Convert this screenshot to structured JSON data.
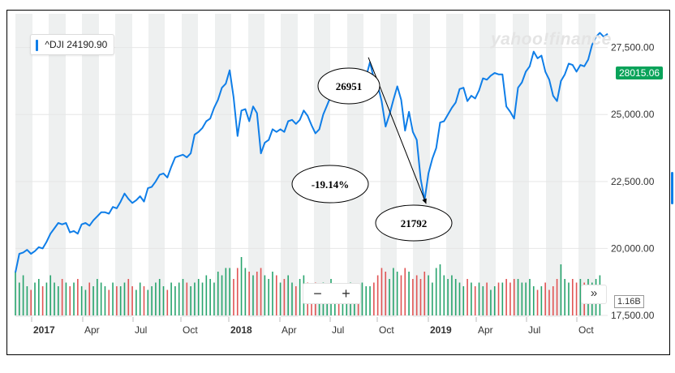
{
  "ticker_label": "^DJI 24190.90",
  "watermark": "yahoo!finance",
  "controls": {
    "zoom_out": "−",
    "zoom_in": "+",
    "more": "»"
  },
  "annotations": {
    "peak": "26951",
    "trough": "21792",
    "change": "-19.14%"
  },
  "chart_data": {
    "type": "line",
    "title": "",
    "xlabel": "",
    "ylabel": "",
    "ylim": [
      17500,
      28700
    ],
    "yticks": [
      17500,
      20000,
      22500,
      25000,
      27500
    ],
    "ytick_labels": [
      "17,500.00",
      "20,000.00",
      "22,500.00",
      "25,000.00",
      "27,500.00"
    ],
    "x_tick_labels": [
      "2017",
      "Apr",
      "Jul",
      "Oct",
      "2018",
      "Apr",
      "Jul",
      "Oct",
      "2019",
      "Apr",
      "Jul",
      "Oct"
    ],
    "last_price": "28015.06",
    "volume_label": "1.16B",
    "series": [
      {
        "values": [
          19100,
          19800,
          19850,
          19950,
          19800,
          19900,
          20050,
          20000,
          20250,
          20550,
          20750,
          20950,
          20900,
          20950,
          20600,
          20650,
          20550,
          20900,
          20950,
          20850,
          21050,
          21200,
          21350,
          21350,
          21300,
          21550,
          21500,
          21750,
          22050,
          21850,
          21700,
          21800,
          21950,
          21750,
          22250,
          22300,
          22500,
          22750,
          22800,
          22650,
          23050,
          23400,
          23450,
          23500,
          23400,
          23550,
          24250,
          24350,
          24500,
          24750,
          24850,
          25250,
          25550,
          26000,
          26150,
          26650,
          25650,
          24200,
          25150,
          25200,
          24750,
          25300,
          25050,
          23550,
          23950,
          24050,
          24450,
          24350,
          24450,
          24350,
          24750,
          24800,
          24650,
          24800,
          25150,
          24950,
          24600,
          24300,
          24450,
          25000,
          25350,
          25700,
          25850,
          25650,
          25650,
          25950,
          25950,
          26050,
          26000,
          26350,
          26400,
          26951,
          26350,
          26100,
          25500,
          24550,
          25000,
          25550,
          26050,
          25550,
          24400,
          25100,
          24350,
          24050,
          22600,
          21792,
          22800,
          23350,
          23750,
          24700,
          24750,
          25000,
          25250,
          25450,
          25950,
          26000,
          25500,
          25700,
          25600,
          25900,
          26350,
          26300,
          26450,
          26550,
          26500,
          26500,
          25300,
          25100,
          24850,
          26000,
          26200,
          26600,
          26800,
          27350,
          27100,
          27200,
          26600,
          26300,
          25700,
          25500,
          26250,
          26500,
          26900,
          26850,
          26600,
          26850,
          26800,
          27050,
          27600,
          27900,
          28050,
          27900,
          28015.06
        ]
      }
    ],
    "volume": [
      1.2,
      0.9,
      1.1,
      0.8,
      0.7,
      0.9,
      1.0,
      0.8,
      0.9,
      1.1,
      0.9,
      0.8,
      1.0,
      0.9,
      0.8,
      0.9,
      1.0,
      0.8,
      0.7,
      0.9,
      0.8,
      1.0,
      0.9,
      0.8,
      0.7,
      0.9,
      0.8,
      0.8,
      0.9,
      1.0,
      0.8,
      0.7,
      0.9,
      0.8,
      0.7,
      0.8,
      0.9,
      1.0,
      0.8,
      0.7,
      0.9,
      0.8,
      0.9,
      1.0,
      0.9,
      0.8,
      0.9,
      1.0,
      0.9,
      1.1,
      1.0,
      0.9,
      1.2,
      1.1,
      1.3,
      1.3,
      1.0,
      1.3,
      1.6,
      1.3,
      1.2,
      1.1,
      1.2,
      1.3,
      1.1,
      1.0,
      1.2,
      1.1,
      0.9,
      1.0,
      1.1,
      0.9,
      0.8,
      1.0,
      1.1,
      0.9,
      0.8,
      0.9,
      0.8,
      0.9,
      0.8,
      1.0,
      0.8,
      0.7,
      0.8,
      0.8,
      0.9,
      0.8,
      0.7,
      0.9,
      0.8,
      0.8,
      0.9,
      1.1,
      1.3,
      1.2,
      1.0,
      1.3,
      1.2,
      1.1,
      1.3,
      1.2,
      1.0,
      1.1,
      1.0,
      1.2,
      1.1,
      0.9,
      1.3,
      1.4,
      1.1,
      1.0,
      1.1,
      1.0,
      0.9,
      0.8,
      1.0,
      0.9,
      0.8,
      0.9,
      0.8,
      0.9,
      0.7,
      0.8,
      0.9,
      0.9,
      1.0,
      0.9,
      1.0,
      1.0,
      0.9,
      0.9,
      1.0,
      0.8,
      0.7,
      0.8,
      0.9,
      0.7,
      0.8,
      1.0,
      1.4,
      1.0,
      0.9,
      1.0,
      0.9,
      1.0,
      0.9,
      1.0,
      0.9,
      1.0,
      1.1
    ],
    "colors": {
      "line": "#0f7ee8",
      "shade": "#eef0f0",
      "vol_up": "#27a46d",
      "vol_down": "#e15454",
      "badge": "#0aa35a"
    }
  }
}
